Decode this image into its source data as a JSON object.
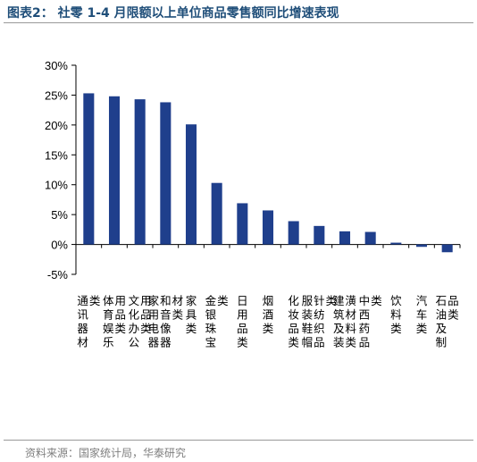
{
  "header": {
    "title": "图表2：  社零 1-4 月限额以上单位商品零售额同比增速表现"
  },
  "footer": {
    "source": "资料来源：国家统计局，华泰研究"
  },
  "chart_data": {
    "type": "bar",
    "categories": [
      "通讯器材类",
      "体育、娱乐用品类",
      "文化办公用品类",
      "家用电器和音像器材类",
      "家具类",
      "金银珠宝类",
      "日用品类",
      "烟酒类",
      "化妆品类",
      "服装、鞋帽、针纺织品类",
      "建筑及装潢材料类",
      "中西药品类",
      "饮料类",
      "汽车类",
      "石油及制品类"
    ],
    "values": [
      25.3,
      24.8,
      24.3,
      23.8,
      20.1,
      10.3,
      6.9,
      5.7,
      3.9,
      3.1,
      2.2,
      2.1,
      0.3,
      -0.4,
      -1.3
    ],
    "unit": "%",
    "ylim": [
      -5,
      30
    ],
    "yticks": [
      "-5%",
      "0%",
      "5%",
      "10%",
      "15%",
      "20%",
      "25%",
      "30%"
    ],
    "ytick_values": [
      -5,
      0,
      5,
      10,
      15,
      20,
      25,
      30
    ],
    "bar_color": "#1f3f8c",
    "grid": false,
    "legend": "none"
  }
}
